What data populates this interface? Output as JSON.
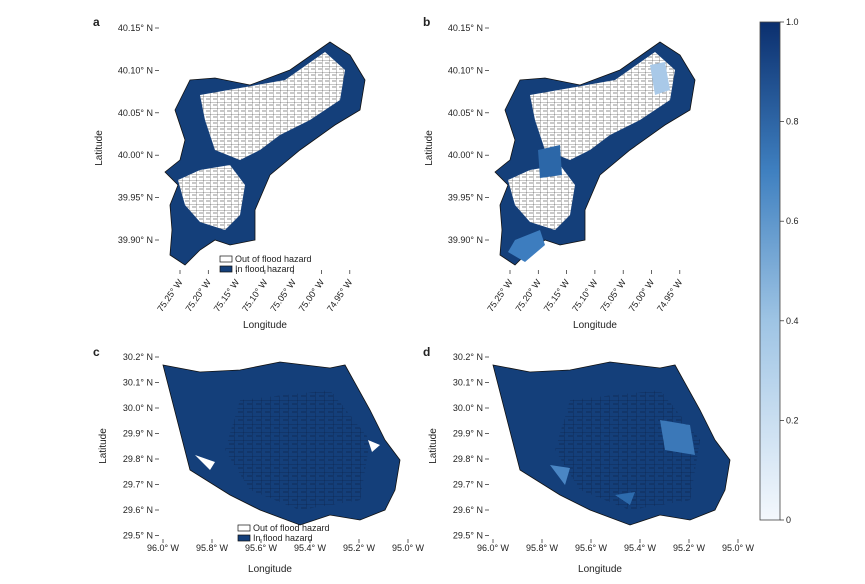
{
  "panels": [
    {
      "label": "a",
      "x_label": "Longitude",
      "y_label": "Latitude",
      "xticks": [
        "75.25° W",
        "75.20° W",
        "75.15° W",
        "75.10° W",
        "75.05° W",
        "75.00° W",
        "74.95° W"
      ],
      "yticks": [
        "40.15° N",
        "40.10° N",
        "40.05° N",
        "40.00° N",
        "39.95° N",
        "39.90° N"
      ],
      "legend": [
        "Out of flood hazard",
        "In flood hazard"
      ]
    },
    {
      "label": "b",
      "x_label": "Longitude",
      "y_label": "Latitude",
      "xticks": [
        "75.25° W",
        "75.20° W",
        "75.15° W",
        "75.10° W",
        "75.05° W",
        "75.00° W",
        "74.95° W"
      ],
      "yticks": [
        "40.15° N",
        "40.10° N",
        "40.05° N",
        "40.00° N",
        "39.95° N",
        "39.90° N"
      ]
    },
    {
      "label": "c",
      "x_label": "Longitude",
      "y_label": "Latitude",
      "xticks": [
        "96.0° W",
        "95.8° W",
        "95.6° W",
        "95.4° W",
        "95.2° W",
        "95.0° W"
      ],
      "yticks": [
        "30.2° N",
        "30.1° N",
        "30.0° N",
        "29.9° N",
        "29.8° N",
        "29.7° N",
        "29.6° N",
        "29.5° N"
      ],
      "legend": [
        "Out of flood hazard",
        "In flood hazard"
      ]
    },
    {
      "label": "d",
      "x_label": "Longitude",
      "y_label": "Latitude",
      "xticks": [
        "96.0° W",
        "95.8° W",
        "95.6° W",
        "95.4° W",
        "95.2° W",
        "95.0° W"
      ],
      "yticks": [
        "30.2° N",
        "30.1° N",
        "30.0° N",
        "29.9° N",
        "29.8° N",
        "29.7° N",
        "29.6° N",
        "29.5° N"
      ]
    }
  ],
  "colorbar": {
    "lim": [
      0,
      1
    ],
    "ticks": [
      0,
      {
        "value": 0.2,
        "label": "0.2"
      },
      {
        "value": 0.4,
        "label": "0.4"
      },
      {
        "value": 0.6,
        "label": "0.6"
      },
      {
        "value": 0.8,
        "label": "0.8"
      },
      {
        "value": 1,
        "label": "1.0"
      }
    ]
  }
}
